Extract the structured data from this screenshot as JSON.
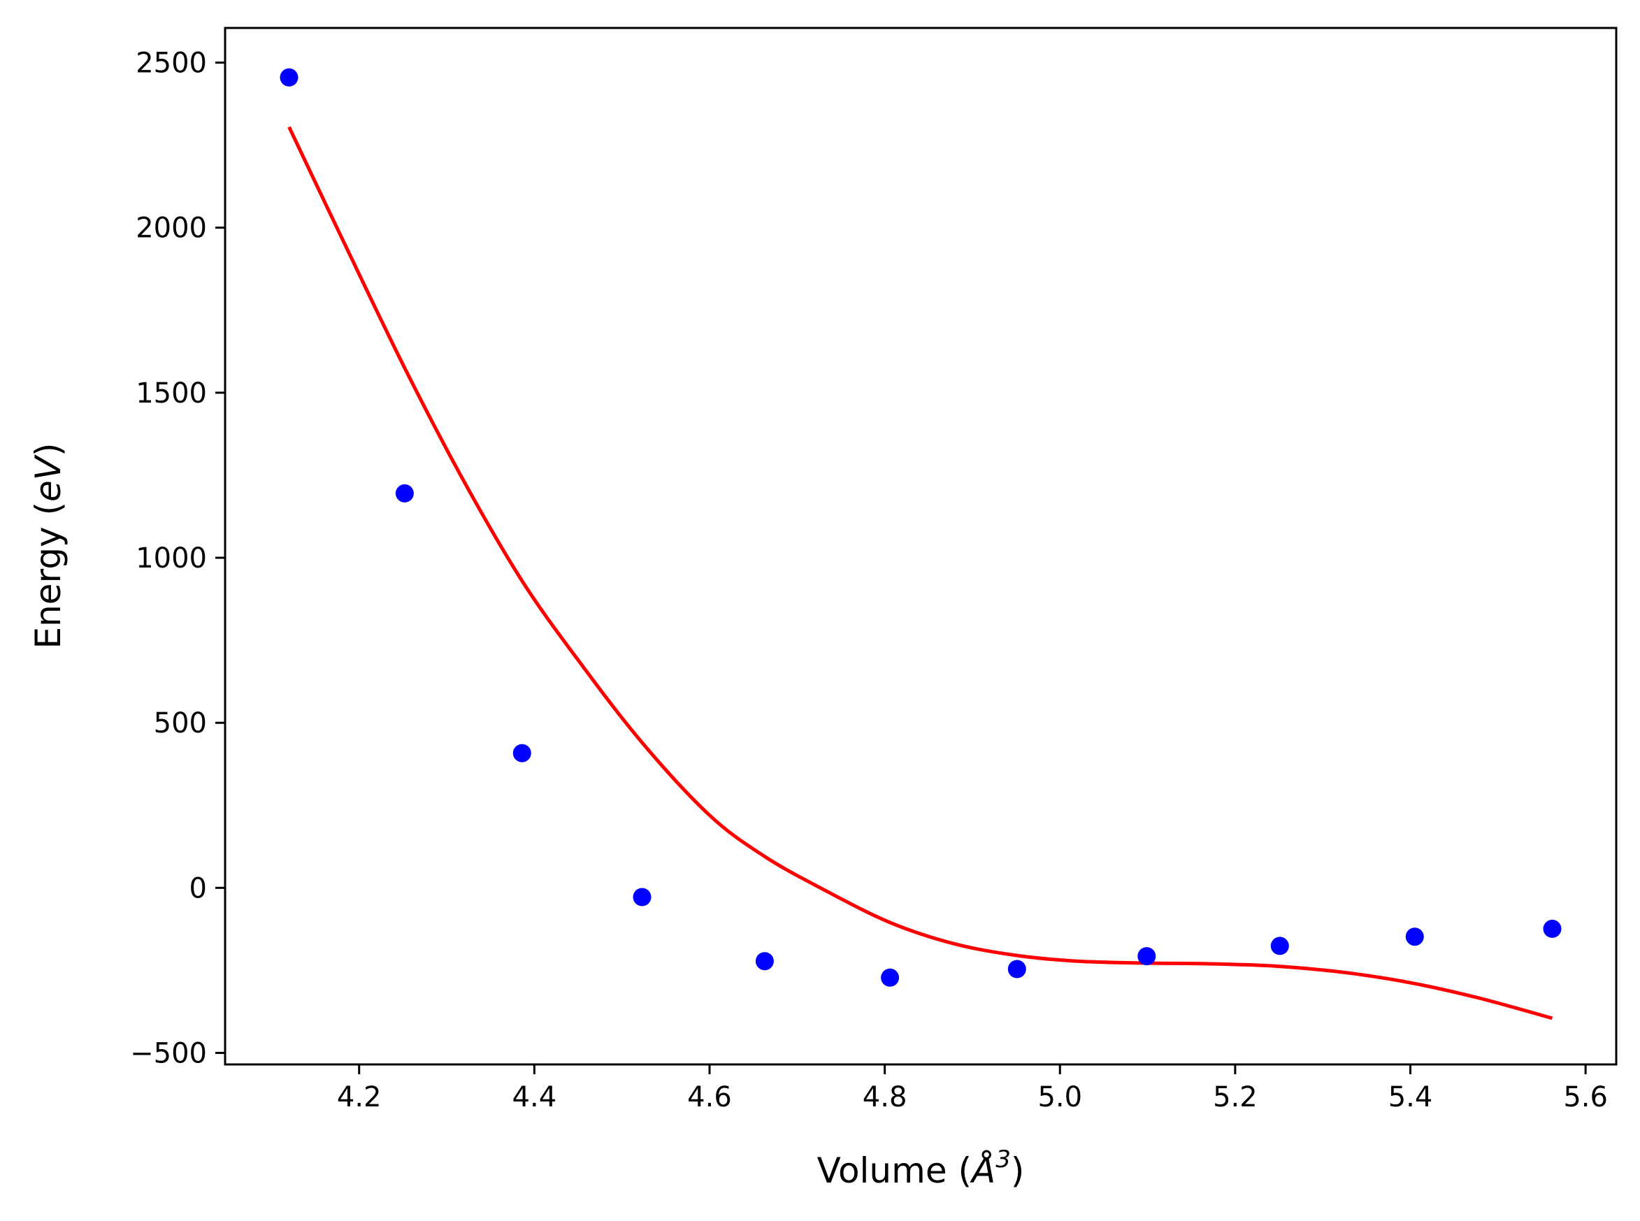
{
  "chart_data": {
    "type": "scatter",
    "xlabel_base": "Volume (",
    "xlabel_symbol": "Å",
    "xlabel_exp": "3",
    "xlabel_close": ")",
    "ylabel_base": "Energy (",
    "ylabel_unit": "eV",
    "ylabel_close": ")",
    "xlim": [
      4.047,
      5.635
    ],
    "ylim": [
      -535,
      2605
    ],
    "xticks": [
      {
        "value": 4.2,
        "label": "4.2"
      },
      {
        "value": 4.4,
        "label": "4.4"
      },
      {
        "value": 4.6,
        "label": "4.6"
      },
      {
        "value": 4.8,
        "label": "4.8"
      },
      {
        "value": 5.0,
        "label": "5.0"
      },
      {
        "value": 5.2,
        "label": "5.2"
      },
      {
        "value": 5.4,
        "label": "5.4"
      },
      {
        "value": 5.6,
        "label": "5.6"
      }
    ],
    "yticks": [
      {
        "value": -500,
        "label": "−500"
      },
      {
        "value": 0,
        "label": "0"
      },
      {
        "value": 500,
        "label": "500"
      },
      {
        "value": 1000,
        "label": "1000"
      },
      {
        "value": 1500,
        "label": "1500"
      },
      {
        "value": 2000,
        "label": "2000"
      },
      {
        "value": 2500,
        "label": "2500"
      }
    ],
    "grid": false,
    "series": [
      {
        "kind": "points",
        "color": "#0000ff",
        "x": [
          4.12,
          4.252,
          4.386,
          4.523,
          4.663,
          4.806,
          4.951,
          5.099,
          5.251,
          5.405,
          5.562
        ],
        "y": [
          2455,
          1195,
          408,
          -28,
          -222,
          -272,
          -246,
          -207,
          -176,
          -148,
          -124
        ]
      },
      {
        "kind": "fit-line",
        "color": "#ff0000",
        "x": [
          4.12,
          4.18,
          4.252,
          4.32,
          4.386,
          4.45,
          4.523,
          4.6,
          4.663,
          4.73,
          4.806,
          4.88,
          4.951,
          5.02,
          5.099,
          5.17,
          5.251,
          5.33,
          5.405,
          5.48,
          5.562
        ],
        "y": [
          2305,
          1970,
          1575,
          1230,
          930,
          690,
          440,
          220,
          95,
          -5,
          -105,
          -170,
          -205,
          -222,
          -228,
          -230,
          -238,
          -258,
          -290,
          -335,
          -395
        ]
      }
    ]
  }
}
